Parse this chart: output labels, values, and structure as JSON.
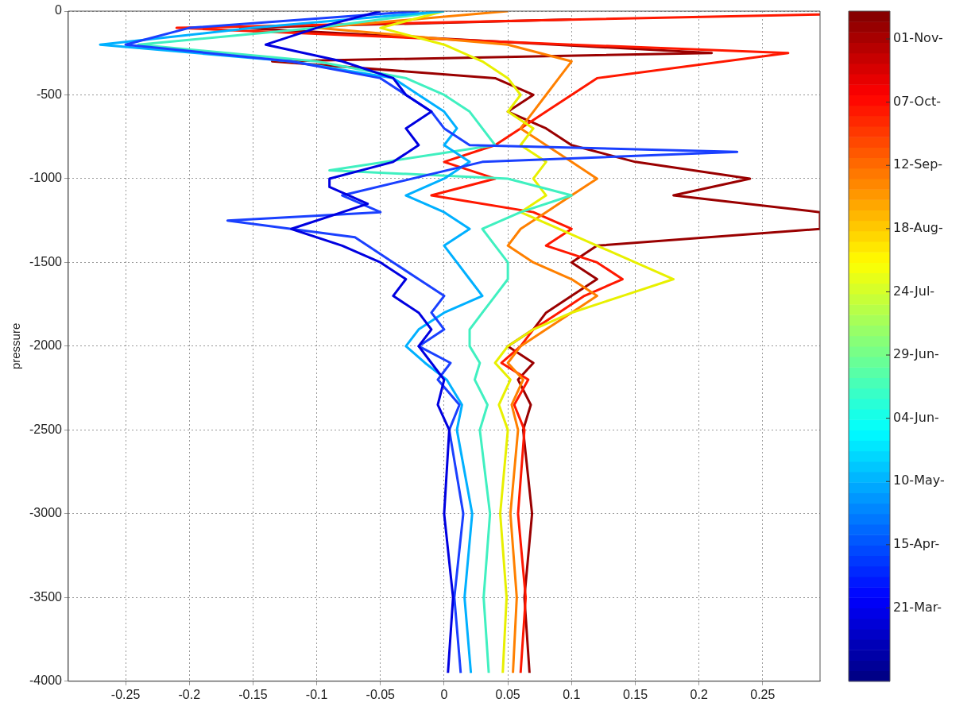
{
  "chart_data": {
    "type": "line",
    "ylabel": "pressure",
    "xlim": [
      -0.295,
      0.295
    ],
    "ylim": [
      -4000,
      0
    ],
    "xticks": [
      -0.25,
      -0.2,
      -0.15,
      -0.1,
      -0.05,
      0,
      0.05,
      0.1,
      0.15,
      0.2,
      0.25
    ],
    "yticks": [
      -4000,
      -3500,
      -3000,
      -2500,
      -2000,
      -1500,
      -1000,
      -500,
      0
    ],
    "grid": true,
    "legend": false,
    "marker": "none",
    "line_style": "solid",
    "clim": [
      51,
      316
    ],
    "cticks": [
      {
        "value": 80,
        "label": "21-Mar-"
      },
      {
        "value": 105,
        "label": "15-Apr-"
      },
      {
        "value": 130,
        "label": "10-May-"
      },
      {
        "value": 155,
        "label": "04-Jun-"
      },
      {
        "value": 180,
        "label": "29-Jun-"
      },
      {
        "value": 205,
        "label": "24-Jul-"
      },
      {
        "value": 230,
        "label": "18-Aug-"
      },
      {
        "value": 255,
        "label": "12-Sep-"
      },
      {
        "value": 280,
        "label": "07-Oct-"
      },
      {
        "value": 305,
        "label": "01-Nov-"
      }
    ],
    "series": [
      {
        "color": "#0000e0",
        "x": [
          -0.05,
          -0.1,
          -0.14,
          -0.08,
          -0.04,
          -0.03,
          -0.01,
          -0.03,
          -0.02,
          -0.04,
          -0.09,
          -0.09,
          -0.06,
          -0.12,
          -0.08,
          -0.05,
          -0.03,
          -0.04,
          -0.02,
          -0.01,
          -0.02,
          -0.01,
          0.0,
          -0.005,
          0.004,
          0.0,
          0.007,
          0.003
        ],
        "values": [
          0,
          -100,
          -200,
          -300,
          -400,
          -500,
          -600,
          -700,
          -800,
          -900,
          -1000,
          -1050,
          -1150,
          -1300,
          -1400,
          -1500,
          -1600,
          -1700,
          -1800,
          -1900,
          -2000,
          -2100,
          -2200,
          -2350,
          -2500,
          -3000,
          -3500,
          -3950
        ]
      },
      {
        "color": "#1a40ff",
        "x": [
          -0.02,
          -0.2,
          -0.25,
          -0.12,
          -0.05,
          -0.03,
          -0.01,
          0.0,
          0.02,
          0.23,
          0.03,
          -0.08,
          -0.05,
          -0.17,
          -0.07,
          -0.04,
          -0.02,
          0.0,
          -0.01,
          0.0,
          -0.02,
          0.005,
          -0.005,
          0.012,
          0.004,
          0.015,
          0.008,
          0.013
        ],
        "values": [
          0,
          -100,
          -200,
          -300,
          -400,
          -500,
          -600,
          -700,
          -800,
          -840,
          -900,
          -1100,
          -1200,
          -1250,
          -1350,
          -1500,
          -1600,
          -1700,
          -1800,
          -1900,
          -2000,
          -2100,
          -2200,
          -2350,
          -2500,
          -3000,
          -3500,
          -3950
        ]
      },
      {
        "color": "#00b0ff",
        "x": [
          0.0,
          -0.15,
          -0.27,
          -0.12,
          -0.04,
          -0.02,
          0.0,
          0.01,
          0.0,
          0.02,
          0.0,
          -0.03,
          0.0,
          0.02,
          0.0,
          0.01,
          0.02,
          0.03,
          0.0,
          -0.02,
          -0.03,
          -0.015,
          0.002,
          0.014,
          0.01,
          0.022,
          0.016,
          0.021
        ],
        "values": [
          0,
          -100,
          -200,
          -300,
          -400,
          -500,
          -600,
          -700,
          -800,
          -900,
          -1000,
          -1100,
          -1200,
          -1300,
          -1400,
          -1500,
          -1600,
          -1700,
          -1800,
          -1900,
          -2000,
          -2100,
          -2200,
          -2350,
          -2500,
          -3000,
          -3500,
          -3950
        ]
      },
      {
        "color": "#40f0c0",
        "x": [
          0.0,
          -0.1,
          -0.24,
          -0.1,
          -0.03,
          0.0,
          0.02,
          0.03,
          0.04,
          -0.09,
          0.05,
          0.1,
          0.06,
          0.03,
          0.04,
          0.05,
          0.05,
          0.04,
          0.03,
          0.02,
          0.02,
          0.028,
          0.024,
          0.034,
          0.028,
          0.036,
          0.031,
          0.035
        ],
        "values": [
          0,
          -100,
          -200,
          -300,
          -400,
          -500,
          -600,
          -700,
          -800,
          -950,
          -1000,
          -1100,
          -1200,
          -1300,
          -1400,
          -1500,
          -1600,
          -1700,
          -1800,
          -1900,
          -2000,
          -2100,
          -2200,
          -2350,
          -2500,
          -3000,
          -3500,
          -3950
        ]
      },
      {
        "color": "#e8f000",
        "x": [
          0.0,
          -0.05,
          0.0,
          0.03,
          0.05,
          0.06,
          0.05,
          0.07,
          0.06,
          0.08,
          0.07,
          0.08,
          0.06,
          0.09,
          0.12,
          0.15,
          0.18,
          0.14,
          0.1,
          0.07,
          0.05,
          0.04,
          0.052,
          0.043,
          0.05,
          0.044,
          0.049,
          0.046
        ],
        "values": [
          0,
          -100,
          -200,
          -300,
          -400,
          -500,
          -600,
          -700,
          -800,
          -900,
          -1000,
          -1100,
          -1200,
          -1300,
          -1400,
          -1500,
          -1600,
          -1700,
          -1800,
          -1900,
          -2000,
          -2100,
          -2200,
          -2350,
          -2500,
          -3000,
          -3500,
          -3950
        ]
      },
      {
        "color": "#ff8000",
        "x": [
          0.05,
          -0.1,
          0.05,
          0.1,
          0.09,
          0.08,
          0.07,
          0.06,
          0.08,
          0.1,
          0.12,
          0.1,
          0.08,
          0.06,
          0.05,
          0.07,
          0.1,
          0.12,
          0.1,
          0.08,
          0.06,
          0.05,
          0.062,
          0.053,
          0.058,
          0.052,
          0.057,
          0.054
        ],
        "values": [
          0,
          -100,
          -200,
          -300,
          -400,
          -500,
          -600,
          -700,
          -800,
          -900,
          -1000,
          -1100,
          -1200,
          -1300,
          -1400,
          -1500,
          -1600,
          -1700,
          -1800,
          -1900,
          -2000,
          -2100,
          -2200,
          -2350,
          -2500,
          -3000,
          -3500,
          -3950
        ]
      },
      {
        "color": "#ff1800",
        "x": [
          0.295,
          -0.21,
          0.1,
          0.27,
          0.12,
          0.1,
          0.08,
          0.06,
          0.04,
          0.0,
          0.04,
          -0.01,
          0.07,
          0.1,
          0.08,
          0.12,
          0.14,
          0.11,
          0.09,
          0.07,
          0.06,
          0.045,
          0.066,
          0.055,
          0.063,
          0.058,
          0.064,
          0.06
        ],
        "values": [
          -20,
          -100,
          -200,
          -250,
          -400,
          -500,
          -600,
          -700,
          -800,
          -900,
          -1000,
          -1100,
          -1200,
          -1300,
          -1400,
          -1500,
          -1600,
          -1700,
          -1800,
          -1900,
          -2000,
          -2100,
          -2200,
          -2350,
          -2500,
          -3000,
          -3500,
          -3950
        ]
      },
      {
        "color": "#9a0000",
        "x": [
          0.1,
          -0.16,
          0.21,
          -0.135,
          0.04,
          0.07,
          0.05,
          0.08,
          0.1,
          0.15,
          0.24,
          0.18,
          0.295,
          0.295,
          0.12,
          0.1,
          0.12,
          0.1,
          0.08,
          0.07,
          0.05,
          0.07,
          0.058,
          0.068,
          0.062,
          0.069,
          0.063,
          0.067
        ],
        "values": [
          -50,
          -100,
          -250,
          -300,
          -400,
          -500,
          -600,
          -700,
          -800,
          -900,
          -1000,
          -1100,
          -1200,
          -1300,
          -1400,
          -1500,
          -1600,
          -1700,
          -1800,
          -1900,
          -2000,
          -2100,
          -2200,
          -2350,
          -2500,
          -3000,
          -3500,
          -3950
        ]
      }
    ]
  }
}
